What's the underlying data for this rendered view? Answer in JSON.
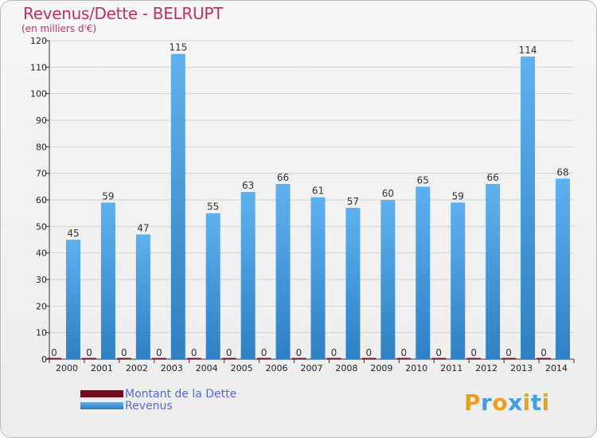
{
  "header": {
    "title": "Revenus/Dette - BELRUPT",
    "subtitle": "(en milliers d'€)"
  },
  "colors": {
    "title": "#c0305a",
    "revenus": "#4a9fe0",
    "dette": "#6b0f1a",
    "legend_text": "#5566dd",
    "grid": "#cccccc"
  },
  "legend": {
    "items": [
      {
        "label": "Montant de la Dette",
        "color": "#6b0f1a"
      },
      {
        "label": "Revenus",
        "color": "#4a9fe0"
      }
    ]
  },
  "logo": {
    "text": "Proxiti",
    "letter_colors": [
      "#e8a020",
      "#3fa0e0",
      "#e8a020",
      "#3fa0e0",
      "#e8a020",
      "#3fa0e0",
      "#e8a020"
    ]
  },
  "chart_data": {
    "type": "bar",
    "title": "Revenus/Dette - BELRUPT",
    "subtitle": "(en milliers d'€)",
    "categories": [
      "2000",
      "2001",
      "2002",
      "2003",
      "2004",
      "2005",
      "2006",
      "2007",
      "2008",
      "2009",
      "2010",
      "2011",
      "2012",
      "2013",
      "2014"
    ],
    "series": [
      {
        "name": "Montant de la Dette",
        "values": [
          0,
          0,
          0,
          0,
          0,
          0,
          0,
          0,
          0,
          0,
          0,
          0,
          0,
          0,
          0
        ]
      },
      {
        "name": "Revenus",
        "values": [
          45,
          59,
          47,
          115,
          55,
          63,
          66,
          61,
          57,
          60,
          65,
          59,
          66,
          114,
          68
        ]
      }
    ],
    "ylim": [
      0,
      120
    ],
    "yticks": [
      0,
      10,
      20,
      30,
      40,
      50,
      60,
      70,
      80,
      90,
      100,
      110,
      120
    ],
    "grid": true,
    "legend_position": "bottom-left"
  }
}
